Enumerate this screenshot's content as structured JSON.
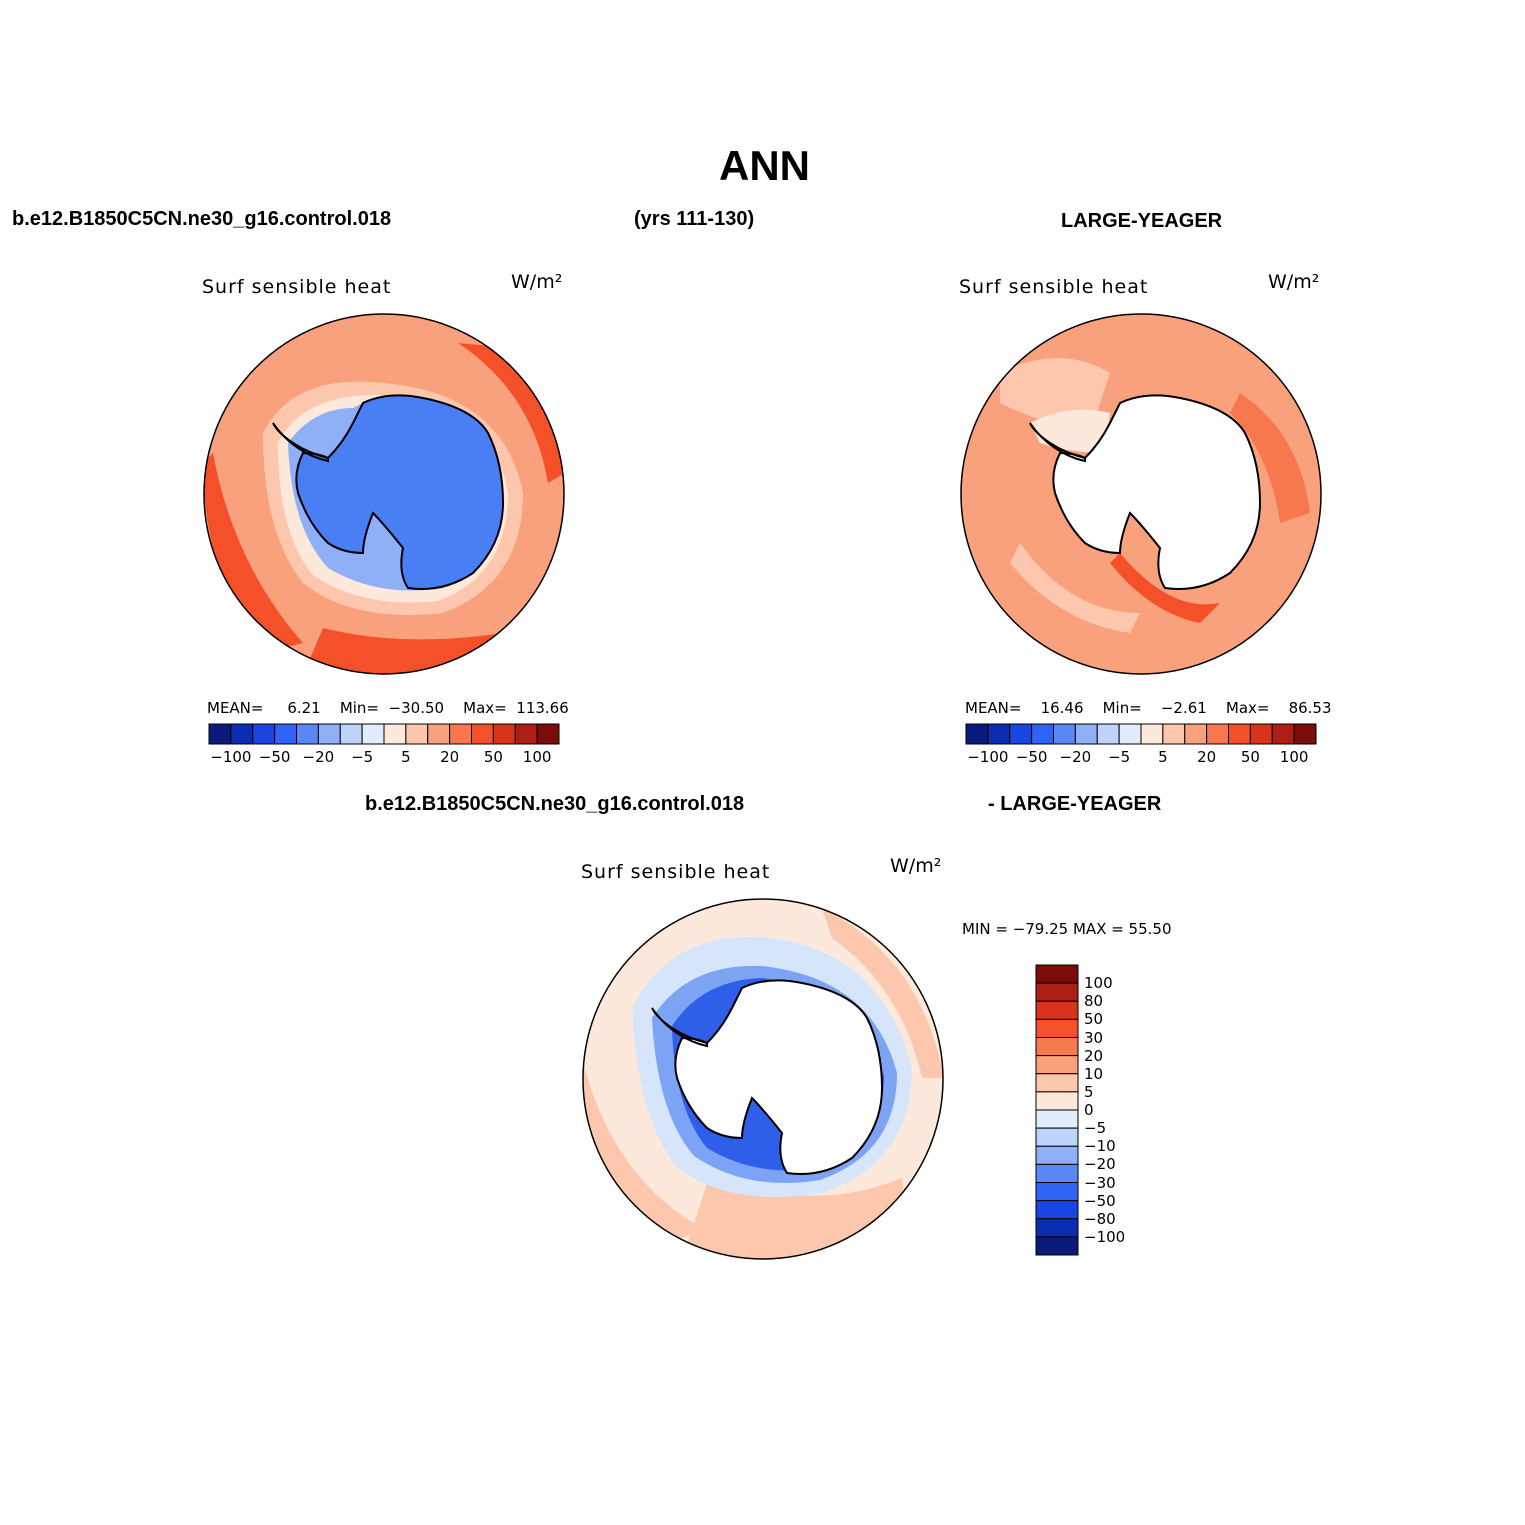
{
  "title": "ANN",
  "header": {
    "case_left": "b.e12.B1850C5CN.ne30_g16.control.018",
    "years": "(yrs 111-130)",
    "obs_right": "LARGE-YEAGER"
  },
  "panel_left": {
    "title": "Surf  sensible  heat",
    "units": "W/m²",
    "mean_label": "MEAN=",
    "mean": "6.21",
    "min_label": "Min=",
    "min": "−30.50",
    "max_label": "Max=",
    "max": "113.66"
  },
  "panel_right": {
    "title": "Surf  sensible  heat",
    "units": "W/m²",
    "mean_label": "MEAN=",
    "mean": "16.46",
    "min_label": "Min=",
    "min": "−2.61",
    "max_label": "Max=",
    "max": "86.53"
  },
  "diff_header": {
    "case": "b.e12.B1850C5CN.ne30_g16.control.018",
    "obs": "- LARGE-YEAGER"
  },
  "panel_diff": {
    "title": "Surf  sensible  heat",
    "units": "W/m²",
    "minmax_text": "MIN = −79.25  MAX =   55.50"
  },
  "colorbar_top": {
    "colors": [
      "#0a1a7a",
      "#0d2db0",
      "#1a45e0",
      "#2f64f5",
      "#5a88f7",
      "#8fb0f7",
      "#bdd3f9",
      "#e2ecfb",
      "#fde9dc",
      "#fcc7ad",
      "#f9a07c",
      "#f7784e",
      "#f4502a",
      "#d9331c",
      "#ad1e14",
      "#7a0d0a"
    ],
    "labels": [
      "−100",
      "−50",
      "−20",
      "−5",
      "5",
      "20",
      "50",
      "100"
    ]
  },
  "colorbar_diff": {
    "colors": [
      "#7a0d0a",
      "#ad1e14",
      "#d9331c",
      "#f4502a",
      "#f7784e",
      "#f9a07c",
      "#fcc7ad",
      "#fde9dc",
      "#e2ecfb",
      "#bdd3f9",
      "#8fb0f7",
      "#5a88f7",
      "#2f64f5",
      "#1a45e0",
      "#0d2db0",
      "#0a1a7a"
    ],
    "labels": [
      "100",
      "80",
      "50",
      "30",
      "20",
      "10",
      "5",
      "0",
      "−5",
      "−10",
      "−20",
      "−30",
      "−50",
      "−80",
      "−100"
    ]
  },
  "map_colors": {
    "ocean_warm": "#f9a07c",
    "ocean_hot": "#f4502a",
    "ocean_light": "#fcc7ad",
    "ocean_pale": "#fde9dc",
    "ice_blue": "#4a7ef5",
    "ice_light": "#8fb0f7",
    "land_white": "#ffffff",
    "diff_light": "#d7e5fb",
    "diff_mid": "#7da3f5",
    "diff_dark": "#2f5ee8"
  }
}
